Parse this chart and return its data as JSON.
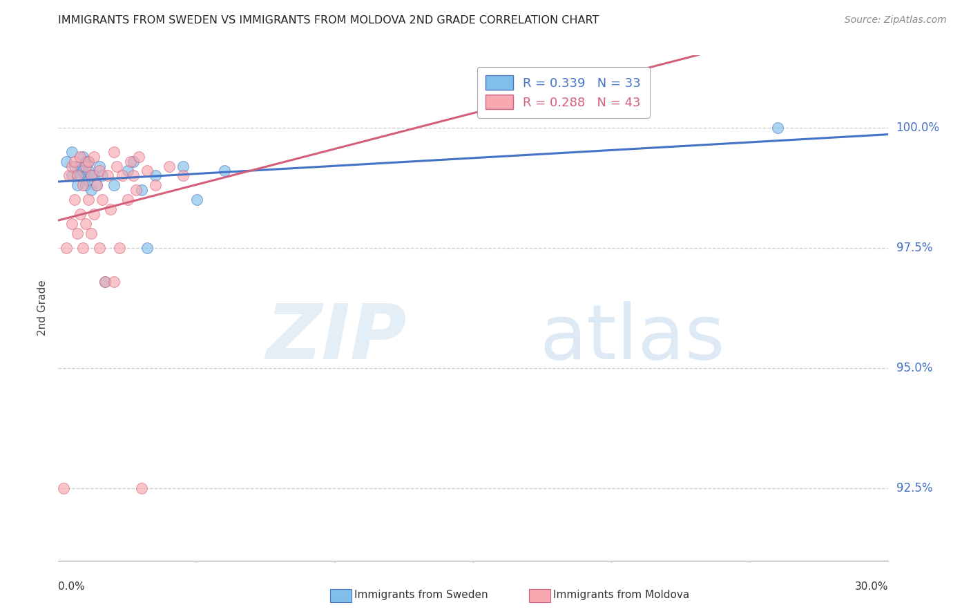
{
  "title": "IMMIGRANTS FROM SWEDEN VS IMMIGRANTS FROM MOLDOVA 2ND GRADE CORRELATION CHART",
  "source": "Source: ZipAtlas.com",
  "ylabel": "2nd Grade",
  "yticks": [
    92.5,
    95.0,
    97.5,
    100.0
  ],
  "xlim": [
    0.0,
    30.0
  ],
  "ylim": [
    91.0,
    101.5
  ],
  "legend_blue": {
    "R": 0.339,
    "N": 33,
    "label": "Immigrants from Sweden"
  },
  "legend_pink": {
    "R": 0.288,
    "N": 43,
    "label": "Immigrants from Moldova"
  },
  "blue_color": "#7fbfea",
  "pink_color": "#f8a8b0",
  "trendline_blue": "#4472c4",
  "trendline_pink": "#d45f7a",
  "sweden_x": [
    0.3,
    0.5,
    0.5,
    0.6,
    0.7,
    0.7,
    0.8,
    0.8,
    0.9,
    0.9,
    1.0,
    1.0,
    1.0,
    1.1,
    1.1,
    1.1,
    1.2,
    1.2,
    1.3,
    1.4,
    1.5,
    1.6,
    1.7,
    2.0,
    2.5,
    2.7,
    3.0,
    3.2,
    3.5,
    4.5,
    5.0,
    6.0,
    26.0
  ],
  "sweden_y": [
    99.3,
    99.0,
    99.5,
    99.2,
    99.0,
    98.8,
    99.2,
    99.0,
    99.4,
    99.1,
    99.3,
    99.0,
    98.8,
    99.1,
    98.9,
    99.3,
    99.0,
    98.7,
    99.0,
    98.8,
    99.2,
    99.0,
    96.8,
    98.8,
    99.1,
    99.3,
    98.7,
    97.5,
    99.0,
    99.2,
    98.5,
    99.1,
    100.0
  ],
  "moldova_x": [
    0.2,
    0.3,
    0.4,
    0.5,
    0.5,
    0.6,
    0.6,
    0.7,
    0.7,
    0.8,
    0.8,
    0.9,
    0.9,
    1.0,
    1.0,
    1.1,
    1.1,
    1.2,
    1.2,
    1.3,
    1.3,
    1.4,
    1.5,
    1.5,
    1.6,
    1.7,
    1.8,
    1.9,
    2.0,
    2.0,
    2.1,
    2.2,
    2.3,
    2.5,
    2.6,
    2.7,
    2.8,
    2.9,
    3.0,
    3.2,
    3.5,
    4.0,
    4.5
  ],
  "moldova_y": [
    92.5,
    97.5,
    99.0,
    98.0,
    99.2,
    98.5,
    99.3,
    97.8,
    99.0,
    98.2,
    99.4,
    97.5,
    98.8,
    98.0,
    99.2,
    98.5,
    99.3,
    97.8,
    99.0,
    98.2,
    99.4,
    98.8,
    97.5,
    99.1,
    98.5,
    96.8,
    99.0,
    98.3,
    99.5,
    96.8,
    99.2,
    97.5,
    99.0,
    98.5,
    99.3,
    99.0,
    98.7,
    99.4,
    92.5,
    99.1,
    98.8,
    99.2,
    99.0
  ]
}
